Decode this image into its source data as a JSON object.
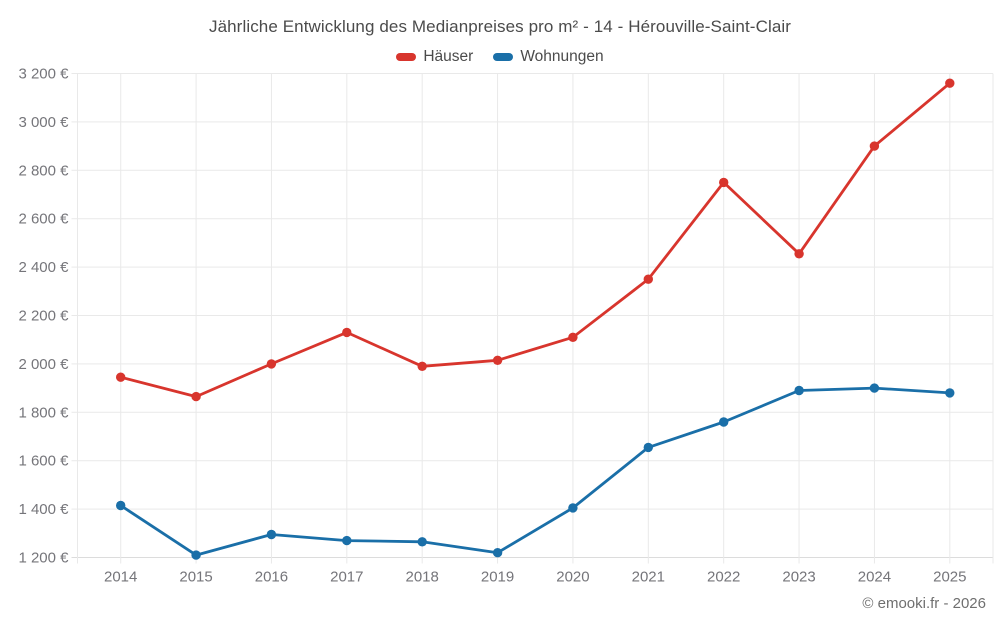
{
  "header": {
    "title": "Jährliche Entwicklung des Medianpreises pro m² - 14 - Hérouville-Saint-Clair"
  },
  "footer": {
    "credit": "© emooki.fr - 2026"
  },
  "colors": {
    "hauser_red": "#d8352d",
    "wohnungen_blue": "#1a6fa8",
    "grid": "#e9e9e9",
    "axis": "#dcdcdc",
    "tick_text": "#75757a",
    "title_text": "#4b4b4b"
  },
  "chart_data": {
    "type": "line",
    "title": "Jährliche Entwicklung des Medianpreises pro m² - 14 - Hérouville-Saint-Clair",
    "categories": [
      "2014",
      "2015",
      "2016",
      "2017",
      "2018",
      "2019",
      "2020",
      "2021",
      "2022",
      "2023",
      "2024",
      "2025"
    ],
    "series": [
      {
        "name": "Häuser",
        "color": "#d8352d",
        "values": [
          1945,
          1865,
          2000,
          2130,
          1990,
          2015,
          2110,
          2350,
          2750,
          2455,
          2900,
          3160
        ]
      },
      {
        "name": "Wohnungen",
        "color": "#1a6fa8",
        "values": [
          1415,
          1210,
          1295,
          1270,
          1265,
          1220,
          1405,
          1655,
          1760,
          1890,
          1900,
          1880
        ]
      }
    ],
    "xlabel": "",
    "ylabel": "",
    "ylim": [
      1200,
      3200
    ],
    "y_step": 200,
    "y_ticks": [
      "1 200 €",
      "1 400 €",
      "1 600 €",
      "1 800 €",
      "2 000 €",
      "2 200 €",
      "2 400 €",
      "2 600 €",
      "2 800 €",
      "3 000 €",
      "3 200 €"
    ],
    "grid": true,
    "legend_position": "top"
  }
}
